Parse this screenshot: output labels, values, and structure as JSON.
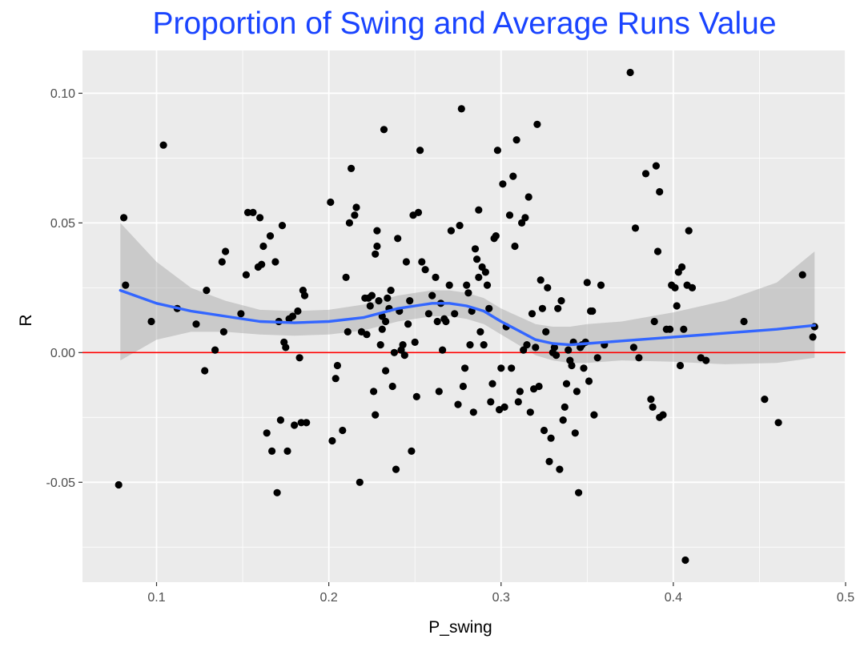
{
  "chart_data": {
    "type": "scatter",
    "title": "Proportion of Swing and Average Runs Value",
    "xlabel": "P_swing",
    "ylabel": "R",
    "xlim": [
      0.057,
      0.5
    ],
    "ylim": [
      -0.0885,
      0.1165
    ],
    "x_ticks": [
      "0.1",
      "0.2",
      "0.3",
      "0.4",
      "0.5"
    ],
    "y_ticks": [
      "-0.05",
      "0.00",
      "0.05",
      "0.10"
    ],
    "x_tick_values": [
      0.1,
      0.2,
      0.3,
      0.4,
      0.5
    ],
    "y_tick_values": [
      -0.05,
      0.0,
      0.05,
      0.1
    ],
    "grid": true,
    "reference_line": {
      "y": 0.0,
      "color": "#ff0000"
    },
    "colors": {
      "title": "#1a44ff",
      "panel_background": "#ebebeb",
      "grid": "#ffffff",
      "points": "#000000",
      "smooth_line": "#3366ff",
      "confidence_band": "#999999"
    },
    "points": [
      [
        0.078,
        -0.051
      ],
      [
        0.081,
        0.052
      ],
      [
        0.082,
        0.026
      ],
      [
        0.097,
        0.012
      ],
      [
        0.104,
        0.08
      ],
      [
        0.112,
        0.017
      ],
      [
        0.123,
        0.011
      ],
      [
        0.128,
        -0.007
      ],
      [
        0.129,
        0.024
      ],
      [
        0.134,
        0.001
      ],
      [
        0.138,
        0.035
      ],
      [
        0.139,
        0.008
      ],
      [
        0.14,
        0.039
      ],
      [
        0.149,
        0.015
      ],
      [
        0.152,
        0.03
      ],
      [
        0.153,
        0.054
      ],
      [
        0.156,
        0.054
      ],
      [
        0.159,
        0.033
      ],
      [
        0.16,
        0.052
      ],
      [
        0.161,
        0.034
      ],
      [
        0.162,
        0.041
      ],
      [
        0.164,
        -0.031
      ],
      [
        0.166,
        0.045
      ],
      [
        0.167,
        -0.038
      ],
      [
        0.169,
        0.035
      ],
      [
        0.17,
        -0.054
      ],
      [
        0.171,
        0.012
      ],
      [
        0.172,
        -0.026
      ],
      [
        0.173,
        0.049
      ],
      [
        0.174,
        0.004
      ],
      [
        0.175,
        0.002
      ],
      [
        0.176,
        -0.038
      ],
      [
        0.177,
        0.013
      ],
      [
        0.179,
        0.014
      ],
      [
        0.18,
        -0.028
      ],
      [
        0.182,
        0.016
      ],
      [
        0.183,
        -0.002
      ],
      [
        0.184,
        -0.027
      ],
      [
        0.185,
        0.024
      ],
      [
        0.186,
        0.022
      ],
      [
        0.187,
        -0.027
      ],
      [
        0.201,
        0.058
      ],
      [
        0.202,
        -0.034
      ],
      [
        0.204,
        -0.01
      ],
      [
        0.205,
        -0.005
      ],
      [
        0.208,
        -0.03
      ],
      [
        0.21,
        0.029
      ],
      [
        0.211,
        0.008
      ],
      [
        0.212,
        0.05
      ],
      [
        0.213,
        0.071
      ],
      [
        0.215,
        0.053
      ],
      [
        0.216,
        0.056
      ],
      [
        0.218,
        -0.05
      ],
      [
        0.219,
        0.008
      ],
      [
        0.221,
        0.021
      ],
      [
        0.222,
        0.007
      ],
      [
        0.223,
        0.021
      ],
      [
        0.224,
        0.018
      ],
      [
        0.225,
        0.022
      ],
      [
        0.226,
        -0.015
      ],
      [
        0.227,
        -0.024
      ],
      [
        0.227,
        0.038
      ],
      [
        0.228,
        0.041
      ],
      [
        0.228,
        0.047
      ],
      [
        0.229,
        0.02
      ],
      [
        0.23,
        0.003
      ],
      [
        0.231,
        0.014
      ],
      [
        0.231,
        0.009
      ],
      [
        0.232,
        0.086
      ],
      [
        0.233,
        0.012
      ],
      [
        0.233,
        -0.007
      ],
      [
        0.234,
        0.021
      ],
      [
        0.235,
        0.017
      ],
      [
        0.236,
        0.024
      ],
      [
        0.237,
        -0.013
      ],
      [
        0.238,
        0.0
      ],
      [
        0.239,
        -0.045
      ],
      [
        0.24,
        0.044
      ],
      [
        0.241,
        0.016
      ],
      [
        0.242,
        0.001
      ],
      [
        0.243,
        0.003
      ],
      [
        0.244,
        -0.001
      ],
      [
        0.245,
        0.035
      ],
      [
        0.246,
        0.011
      ],
      [
        0.247,
        0.02
      ],
      [
        0.248,
        -0.038
      ],
      [
        0.249,
        0.053
      ],
      [
        0.25,
        0.004
      ],
      [
        0.251,
        -0.017
      ],
      [
        0.252,
        0.054
      ],
      [
        0.253,
        0.078
      ],
      [
        0.254,
        0.035
      ],
      [
        0.256,
        0.032
      ],
      [
        0.258,
        0.015
      ],
      [
        0.26,
        0.022
      ],
      [
        0.262,
        0.029
      ],
      [
        0.263,
        0.012
      ],
      [
        0.264,
        -0.015
      ],
      [
        0.265,
        0.019
      ],
      [
        0.266,
        0.001
      ],
      [
        0.267,
        0.013
      ],
      [
        0.268,
        0.012
      ],
      [
        0.27,
        0.026
      ],
      [
        0.271,
        0.047
      ],
      [
        0.273,
        0.015
      ],
      [
        0.275,
        -0.02
      ],
      [
        0.276,
        0.049
      ],
      [
        0.277,
        0.094
      ],
      [
        0.278,
        -0.013
      ],
      [
        0.279,
        -0.006
      ],
      [
        0.28,
        0.026
      ],
      [
        0.281,
        0.023
      ],
      [
        0.282,
        0.003
      ],
      [
        0.283,
        0.016
      ],
      [
        0.284,
        -0.023
      ],
      [
        0.285,
        0.04
      ],
      [
        0.286,
        0.036
      ],
      [
        0.287,
        0.055
      ],
      [
        0.287,
        0.029
      ],
      [
        0.288,
        0.008
      ],
      [
        0.289,
        0.033
      ],
      [
        0.29,
        0.003
      ],
      [
        0.291,
        0.031
      ],
      [
        0.292,
        0.026
      ],
      [
        0.293,
        0.017
      ],
      [
        0.294,
        -0.019
      ],
      [
        0.295,
        -0.012
      ],
      [
        0.296,
        0.044
      ],
      [
        0.297,
        0.045
      ],
      [
        0.298,
        0.078
      ],
      [
        0.299,
        -0.022
      ],
      [
        0.3,
        -0.006
      ],
      [
        0.301,
        0.065
      ],
      [
        0.302,
        -0.021
      ],
      [
        0.303,
        0.01
      ],
      [
        0.305,
        0.053
      ],
      [
        0.306,
        -0.006
      ],
      [
        0.307,
        0.068
      ],
      [
        0.308,
        0.041
      ],
      [
        0.309,
        0.082
      ],
      [
        0.31,
        -0.019
      ],
      [
        0.311,
        -0.015
      ],
      [
        0.312,
        0.05
      ],
      [
        0.313,
        0.001
      ],
      [
        0.314,
        0.052
      ],
      [
        0.315,
        0.003
      ],
      [
        0.316,
        0.06
      ],
      [
        0.317,
        -0.023
      ],
      [
        0.318,
        0.015
      ],
      [
        0.319,
        -0.014
      ],
      [
        0.32,
        0.002
      ],
      [
        0.321,
        0.088
      ],
      [
        0.322,
        -0.013
      ],
      [
        0.323,
        0.028
      ],
      [
        0.324,
        0.017
      ],
      [
        0.325,
        -0.03
      ],
      [
        0.326,
        0.008
      ],
      [
        0.327,
        0.025
      ],
      [
        0.328,
        -0.042
      ],
      [
        0.329,
        -0.033
      ],
      [
        0.33,
        0.0
      ],
      [
        0.331,
        0.002
      ],
      [
        0.332,
        -0.001
      ],
      [
        0.333,
        0.017
      ],
      [
        0.334,
        -0.045
      ],
      [
        0.335,
        0.02
      ],
      [
        0.336,
        -0.026
      ],
      [
        0.337,
        -0.021
      ],
      [
        0.338,
        -0.012
      ],
      [
        0.339,
        0.001
      ],
      [
        0.34,
        -0.003
      ],
      [
        0.341,
        -0.005
      ],
      [
        0.342,
        0.004
      ],
      [
        0.343,
        -0.031
      ],
      [
        0.344,
        -0.015
      ],
      [
        0.345,
        -0.054
      ],
      [
        0.346,
        0.002
      ],
      [
        0.347,
        0.003
      ],
      [
        0.348,
        -0.006
      ],
      [
        0.349,
        0.004
      ],
      [
        0.35,
        0.027
      ],
      [
        0.351,
        -0.011
      ],
      [
        0.352,
        0.016
      ],
      [
        0.353,
        0.016
      ],
      [
        0.354,
        -0.024
      ],
      [
        0.356,
        -0.002
      ],
      [
        0.358,
        0.026
      ],
      [
        0.36,
        0.003
      ],
      [
        0.375,
        0.108
      ],
      [
        0.377,
        0.002
      ],
      [
        0.378,
        0.048
      ],
      [
        0.38,
        -0.002
      ],
      [
        0.384,
        0.069
      ],
      [
        0.387,
        -0.018
      ],
      [
        0.388,
        -0.021
      ],
      [
        0.389,
        0.012
      ],
      [
        0.39,
        0.072
      ],
      [
        0.391,
        0.039
      ],
      [
        0.392,
        0.062
      ],
      [
        0.392,
        -0.025
      ],
      [
        0.394,
        -0.024
      ],
      [
        0.396,
        0.009
      ],
      [
        0.398,
        0.009
      ],
      [
        0.399,
        0.026
      ],
      [
        0.401,
        0.025
      ],
      [
        0.402,
        0.018
      ],
      [
        0.403,
        0.031
      ],
      [
        0.404,
        -0.005
      ],
      [
        0.405,
        0.033
      ],
      [
        0.406,
        0.009
      ],
      [
        0.407,
        -0.08
      ],
      [
        0.408,
        0.026
      ],
      [
        0.409,
        0.047
      ],
      [
        0.411,
        0.025
      ],
      [
        0.416,
        -0.002
      ],
      [
        0.419,
        -0.003
      ],
      [
        0.441,
        0.012
      ],
      [
        0.453,
        -0.018
      ],
      [
        0.461,
        -0.027
      ],
      [
        0.475,
        0.03
      ],
      [
        0.481,
        0.006
      ],
      [
        0.482,
        0.01
      ]
    ],
    "smooth": {
      "x": [
        0.079,
        0.1,
        0.12,
        0.14,
        0.16,
        0.18,
        0.2,
        0.22,
        0.24,
        0.25,
        0.26,
        0.27,
        0.28,
        0.29,
        0.3,
        0.31,
        0.32,
        0.33,
        0.34,
        0.35,
        0.37,
        0.4,
        0.43,
        0.46,
        0.482
      ],
      "y": [
        0.024,
        0.019,
        0.016,
        0.014,
        0.012,
        0.0115,
        0.012,
        0.0135,
        0.017,
        0.018,
        0.019,
        0.019,
        0.018,
        0.016,
        0.012,
        0.0085,
        0.005,
        0.0035,
        0.003,
        0.0035,
        0.0045,
        0.006,
        0.0075,
        0.009,
        0.0105
      ],
      "lower": [
        -0.003,
        0.005,
        0.008,
        0.008,
        0.007,
        0.0065,
        0.007,
        0.0085,
        0.012,
        0.013,
        0.014,
        0.014,
        0.013,
        0.011,
        0.007,
        0.003,
        -0.001,
        -0.003,
        -0.004,
        -0.004,
        -0.003,
        -0.0035,
        -0.0045,
        -0.004,
        -0.002
      ],
      "upper": [
        0.05,
        0.035,
        0.025,
        0.02,
        0.0165,
        0.016,
        0.0165,
        0.0185,
        0.022,
        0.023,
        0.024,
        0.024,
        0.023,
        0.021,
        0.017,
        0.014,
        0.011,
        0.01,
        0.01,
        0.011,
        0.012,
        0.0155,
        0.02,
        0.027,
        0.039
      ]
    }
  }
}
